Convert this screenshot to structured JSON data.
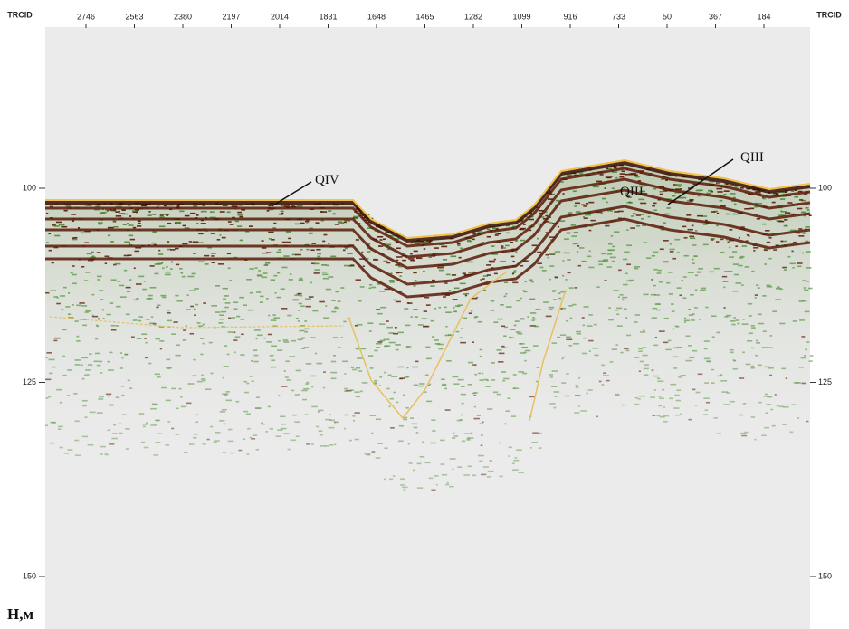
{
  "axis_labels": {
    "top_left": "TRCID",
    "top_right": "TRCID",
    "depth": "H,м"
  },
  "trace_ticks": [
    "2746",
    "2563",
    "2380",
    "2197",
    "2014",
    "1831",
    "1648",
    "1465",
    "1282",
    "1099",
    "916",
    "733",
    "50",
    "367",
    "184"
  ],
  "depth_ticks": [
    100,
    125,
    150
  ],
  "annotations": [
    "QIV",
    "QIII",
    "QIII"
  ]
}
